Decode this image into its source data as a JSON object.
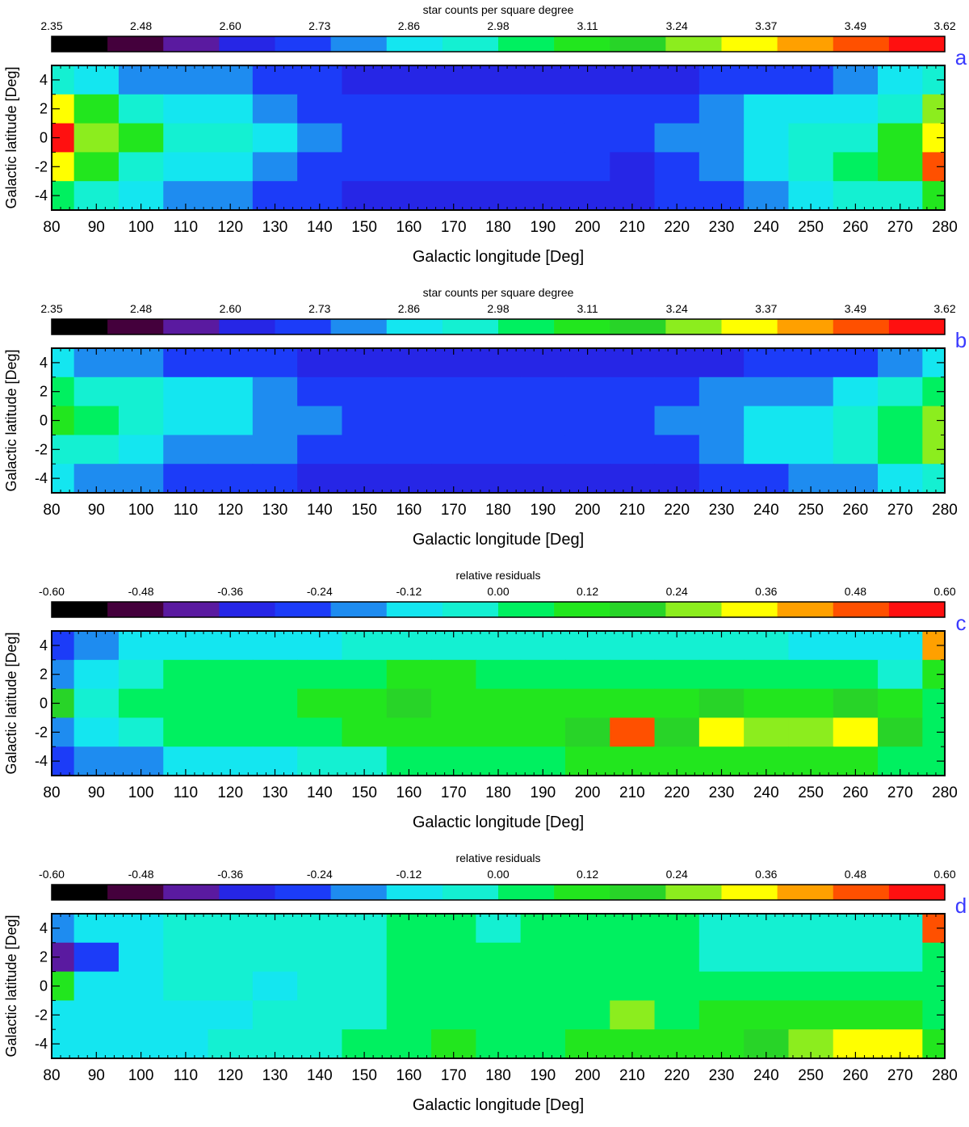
{
  "colors": {
    "levels": [
      "#000000",
      "#44003c",
      "#5a1aa0",
      "#2626e6",
      "#1c3cf8",
      "#1e8cf0",
      "#14e6f0",
      "#14f0d2",
      "#00f060",
      "#22e61e",
      "#28d428",
      "#8ced1e",
      "#ffff00",
      "#ffa000",
      "#ff5000",
      "#ff1010"
    ],
    "panel_letter": "#3a3aff"
  },
  "panels": [
    {
      "letter": "a",
      "colorbar_title": "star counts per square degree",
      "colorbar_ticks": [
        "2.35",
        "2.48",
        "2.60",
        "2.73",
        "2.86",
        "2.98",
        "3.11",
        "3.24",
        "3.37",
        "3.49",
        "3.62"
      ],
      "xlabel": "Galactic longitude [Deg]",
      "ylabel": "Galactic latitude [Deg]",
      "xticks": [
        "80",
        "90",
        "100",
        "110",
        "120",
        "130",
        "140",
        "150",
        "160",
        "170",
        "180",
        "190",
        "200",
        "210",
        "220",
        "230",
        "240",
        "250",
        "260",
        "270",
        "280"
      ],
      "yticks": [
        "4",
        "2",
        "0",
        "-2",
        "-4"
      ]
    },
    {
      "letter": "b",
      "colorbar_title": "star counts per square degree",
      "colorbar_ticks": [
        "2.35",
        "2.48",
        "2.60",
        "2.73",
        "2.86",
        "2.98",
        "3.11",
        "3.24",
        "3.37",
        "3.49",
        "3.62"
      ],
      "xlabel": "Galactic longitude [Deg]",
      "ylabel": "Galactic latitude [Deg]",
      "xticks": [
        "80",
        "90",
        "100",
        "110",
        "120",
        "130",
        "140",
        "150",
        "160",
        "170",
        "180",
        "190",
        "200",
        "210",
        "220",
        "230",
        "240",
        "250",
        "260",
        "270",
        "280"
      ],
      "yticks": [
        "4",
        "2",
        "0",
        "-2",
        "-4"
      ]
    },
    {
      "letter": "c",
      "colorbar_title": "relative residuals",
      "colorbar_ticks": [
        "-0.60",
        "-0.48",
        "-0.36",
        "-0.24",
        "-0.12",
        "0.00",
        "0.12",
        "0.24",
        "0.36",
        "0.48",
        "0.60"
      ],
      "xlabel": "Galactic longitude [Deg]",
      "ylabel": "Galactic latitude [Deg]",
      "xticks": [
        "80",
        "90",
        "100",
        "110",
        "120",
        "130",
        "140",
        "150",
        "160",
        "170",
        "180",
        "190",
        "200",
        "210",
        "220",
        "230",
        "240",
        "250",
        "260",
        "270",
        "280"
      ],
      "yticks": [
        "4",
        "2",
        "0",
        "-2",
        "-4"
      ]
    },
    {
      "letter": "d",
      "colorbar_title": "relative residuals",
      "colorbar_ticks": [
        "-0.60",
        "-0.48",
        "-0.36",
        "-0.24",
        "-0.12",
        "0.00",
        "0.12",
        "0.24",
        "0.36",
        "0.48",
        "0.60"
      ],
      "xlabel": "Galactic longitude [Deg]",
      "ylabel": "Galactic latitude [Deg]",
      "xticks": [
        "80",
        "90",
        "100",
        "110",
        "120",
        "130",
        "140",
        "150",
        "160",
        "170",
        "180",
        "190",
        "200",
        "210",
        "220",
        "230",
        "240",
        "250",
        "260",
        "270",
        "280"
      ],
      "yticks": [
        "4",
        "2",
        "0",
        "-2",
        "-4"
      ]
    }
  ],
  "chart_data": [
    {
      "type": "heatmap",
      "panel": "a",
      "colorbar_title": "star counts per square degree",
      "value_range": [
        2.35,
        3.62
      ],
      "xlabel": "Galactic longitude [Deg]",
      "ylabel": "Galactic latitude [Deg]",
      "xlim": [
        80,
        280
      ],
      "ylim": [
        -5,
        5
      ],
      "x": [
        80,
        90,
        100,
        110,
        120,
        130,
        140,
        150,
        160,
        170,
        180,
        190,
        200,
        210,
        220,
        230,
        240,
        250,
        260,
        270,
        280
      ],
      "y": [
        4,
        2,
        0,
        -2,
        -4
      ],
      "z": [
        [
          2.98,
          2.86,
          2.8,
          2.76,
          2.76,
          2.74,
          2.68,
          2.66,
          2.66,
          2.66,
          2.66,
          2.66,
          2.66,
          2.66,
          2.66,
          2.67,
          2.7,
          2.74,
          2.77,
          2.86,
          2.98
        ],
        [
          3.37,
          3.11,
          2.98,
          2.86,
          2.86,
          2.82,
          2.74,
          2.7,
          2.7,
          2.68,
          2.68,
          2.68,
          2.68,
          2.7,
          2.74,
          2.78,
          2.86,
          2.86,
          2.9,
          2.98,
          3.24
        ],
        [
          3.55,
          3.24,
          3.11,
          2.98,
          2.92,
          2.86,
          2.76,
          2.72,
          2.72,
          2.7,
          2.7,
          2.7,
          2.7,
          2.72,
          2.76,
          2.82,
          2.9,
          2.92,
          2.98,
          3.11,
          3.37
        ],
        [
          3.37,
          3.11,
          2.98,
          2.9,
          2.86,
          2.8,
          2.74,
          2.7,
          2.7,
          2.68,
          2.68,
          2.68,
          2.68,
          2.66,
          2.74,
          2.8,
          2.86,
          2.92,
          3.05,
          3.11,
          3.49
        ],
        [
          3.05,
          2.92,
          2.86,
          2.8,
          2.76,
          2.74,
          2.68,
          2.66,
          2.66,
          2.66,
          2.66,
          2.66,
          2.66,
          2.66,
          2.68,
          2.72,
          2.8,
          2.84,
          2.92,
          2.98,
          3.11
        ]
      ]
    },
    {
      "type": "heatmap",
      "panel": "b",
      "colorbar_title": "star counts per square degree",
      "value_range": [
        2.35,
        3.62
      ],
      "xlabel": "Galactic longitude [Deg]",
      "ylabel": "Galactic latitude [Deg]",
      "xlim": [
        80,
        280
      ],
      "ylim": [
        -5,
        5
      ],
      "x": [
        80,
        90,
        100,
        110,
        120,
        130,
        140,
        150,
        160,
        170,
        180,
        190,
        200,
        210,
        220,
        230,
        240,
        250,
        260,
        270,
        280
      ],
      "y": [
        4,
        2,
        0,
        -2,
        -4
      ],
      "z": [
        [
          2.86,
          2.8,
          2.76,
          2.74,
          2.72,
          2.7,
          2.66,
          2.62,
          2.62,
          2.62,
          2.62,
          2.62,
          2.62,
          2.62,
          2.64,
          2.66,
          2.68,
          2.7,
          2.72,
          2.76,
          2.86
        ],
        [
          3.05,
          2.98,
          2.92,
          2.86,
          2.84,
          2.8,
          2.74,
          2.72,
          2.7,
          2.7,
          2.7,
          2.7,
          2.7,
          2.72,
          2.74,
          2.76,
          2.8,
          2.82,
          2.86,
          2.92,
          3.05
        ],
        [
          3.11,
          3.05,
          2.98,
          2.9,
          2.86,
          2.82,
          2.76,
          2.74,
          2.74,
          2.72,
          2.72,
          2.72,
          2.72,
          2.72,
          2.76,
          2.8,
          2.84,
          2.88,
          2.98,
          3.05,
          3.24
        ],
        [
          2.98,
          2.92,
          2.86,
          2.82,
          2.8,
          2.76,
          2.72,
          2.7,
          2.7,
          2.7,
          2.7,
          2.7,
          2.7,
          2.68,
          2.74,
          2.78,
          2.84,
          2.88,
          2.98,
          3.05,
          3.24
        ],
        [
          2.84,
          2.78,
          2.76,
          2.72,
          2.7,
          2.68,
          2.64,
          2.62,
          2.62,
          2.62,
          2.62,
          2.62,
          2.62,
          2.64,
          2.66,
          2.7,
          2.74,
          2.76,
          2.8,
          2.84,
          2.92
        ]
      ]
    },
    {
      "type": "heatmap",
      "panel": "c",
      "colorbar_title": "relative residuals",
      "value_range": [
        -0.6,
        0.6
      ],
      "xlabel": "Galactic longitude [Deg]",
      "ylabel": "Galactic latitude [Deg]",
      "xlim": [
        80,
        280
      ],
      "ylim": [
        -5,
        5
      ],
      "x": [
        80,
        90,
        100,
        110,
        120,
        130,
        140,
        150,
        160,
        170,
        180,
        190,
        200,
        210,
        220,
        230,
        240,
        250,
        260,
        270,
        280
      ],
      "y": [
        4,
        2,
        0,
        -2,
        -4
      ],
      "z": [
        [
          -0.3,
          -0.18,
          -0.14,
          -0.12,
          -0.1,
          -0.1,
          -0.08,
          -0.06,
          -0.04,
          -0.04,
          -0.04,
          -0.04,
          -0.04,
          -0.04,
          -0.06,
          -0.06,
          -0.06,
          -0.08,
          -0.08,
          -0.1,
          0.4
        ],
        [
          -0.2,
          -0.1,
          -0.02,
          0.04,
          0.06,
          0.04,
          0.06,
          0.06,
          0.08,
          0.08,
          0.06,
          0.06,
          0.06,
          0.06,
          0.06,
          0.04,
          0.04,
          0.04,
          0.02,
          -0.04,
          0.1
        ],
        [
          0.18,
          -0.06,
          0.0,
          0.04,
          0.06,
          0.06,
          0.08,
          0.1,
          0.16,
          0.12,
          0.12,
          0.12,
          0.12,
          0.14,
          0.14,
          0.18,
          0.14,
          0.14,
          0.16,
          0.1,
          0.02
        ],
        [
          -0.16,
          -0.1,
          -0.04,
          0.0,
          0.02,
          0.02,
          0.04,
          0.08,
          0.1,
          0.12,
          0.12,
          0.14,
          0.18,
          0.5,
          0.2,
          0.3,
          0.24,
          0.28,
          0.36,
          0.16,
          0.06
        ],
        [
          -0.28,
          -0.2,
          -0.16,
          -0.12,
          -0.12,
          -0.1,
          -0.06,
          -0.02,
          0.02,
          0.04,
          0.06,
          0.06,
          0.08,
          0.08,
          0.08,
          0.1,
          0.1,
          0.1,
          0.08,
          0.04,
          0.0
        ]
      ]
    },
    {
      "type": "heatmap",
      "panel": "d",
      "colorbar_title": "relative residuals",
      "value_range": [
        -0.6,
        0.6
      ],
      "xlabel": "Galactic longitude [Deg]",
      "ylabel": "Galactic latitude [Deg]",
      "xlim": [
        80,
        280
      ],
      "ylim": [
        -5,
        5
      ],
      "x": [
        80,
        90,
        100,
        110,
        120,
        130,
        140,
        150,
        160,
        170,
        180,
        190,
        200,
        210,
        220,
        230,
        240,
        250,
        260,
        270,
        280
      ],
      "y": [
        4,
        2,
        0,
        -2,
        -4
      ],
      "z": [
        [
          -0.2,
          -0.12,
          -0.08,
          -0.06,
          -0.04,
          -0.04,
          -0.04,
          -0.04,
          0.0,
          0.0,
          -0.02,
          0.0,
          0.0,
          0.0,
          0.0,
          -0.02,
          -0.04,
          -0.04,
          -0.02,
          -0.04,
          0.5
        ],
        [
          -0.4,
          -0.24,
          -0.14,
          -0.06,
          -0.04,
          -0.06,
          -0.06,
          -0.04,
          0.04,
          0.02,
          0.0,
          0.02,
          0.02,
          0.0,
          0.0,
          -0.02,
          -0.02,
          -0.02,
          -0.04,
          -0.04,
          0.04
        ],
        [
          0.14,
          -0.12,
          -0.08,
          -0.06,
          -0.06,
          -0.08,
          -0.06,
          -0.04,
          0.02,
          0.02,
          0.02,
          0.02,
          0.04,
          0.04,
          0.04,
          0.04,
          0.02,
          0.04,
          0.04,
          0.02,
          0.02
        ],
        [
          -0.14,
          -0.1,
          -0.1,
          -0.1,
          -0.08,
          -0.06,
          -0.06,
          -0.02,
          0.04,
          0.06,
          0.04,
          0.04,
          0.06,
          0.24,
          0.06,
          0.08,
          0.08,
          0.1,
          0.14,
          0.1,
          0.06
        ],
        [
          -0.12,
          -0.1,
          -0.08,
          -0.08,
          -0.06,
          -0.06,
          -0.04,
          0.0,
          0.06,
          0.08,
          0.06,
          0.06,
          0.08,
          0.1,
          0.1,
          0.12,
          0.18,
          0.24,
          0.3,
          0.36,
          0.1
        ]
      ]
    }
  ]
}
